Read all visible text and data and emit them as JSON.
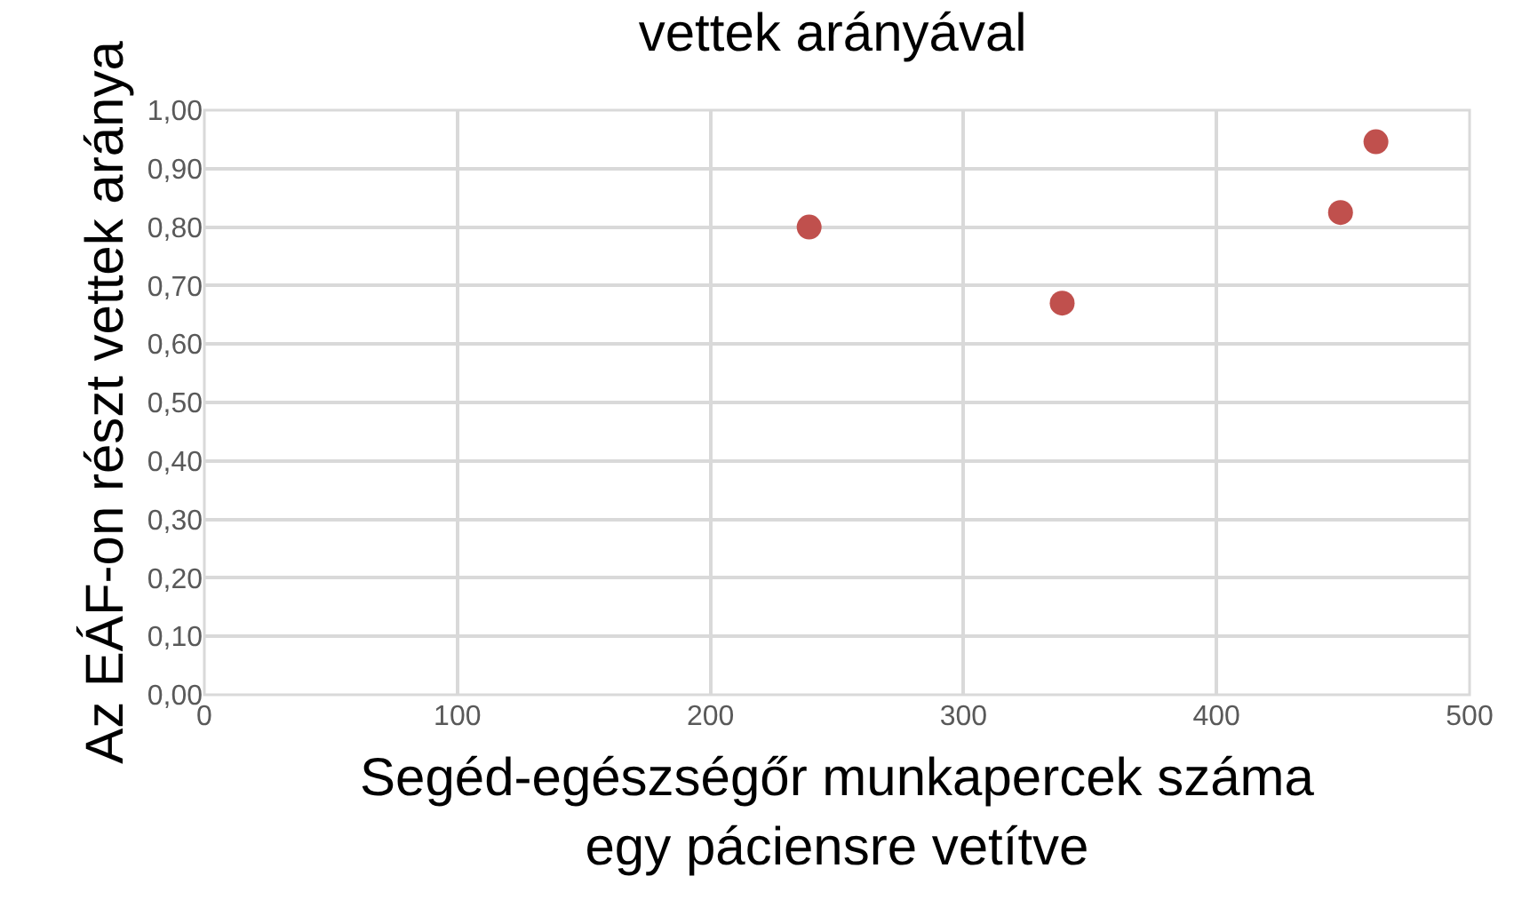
{
  "chart_data": {
    "type": "scatter",
    "title": "vettek arányával",
    "xlabel": "Segéd-egészségőr munkapercek száma\negy páciensre vetítve",
    "ylabel": "Az EÁF-on részt vettek aránya",
    "x": [
      239,
      339,
      449,
      463
    ],
    "series": [
      {
        "color": "#c0504d",
        "values": [
          0.8,
          0.67,
          0.825,
          0.946
        ]
      }
    ],
    "xlim": [
      0,
      500
    ],
    "xticks": [
      0,
      100,
      200,
      300,
      400,
      500
    ],
    "ylim": [
      0,
      1
    ],
    "yticks": [
      {
        "value": 0,
        "label": "0,00"
      },
      {
        "value": 0.1,
        "label": "0,10"
      },
      {
        "value": 0.2,
        "label": "0,20"
      },
      {
        "value": 0.3,
        "label": "0,30"
      },
      {
        "value": 0.4,
        "label": "0,40"
      },
      {
        "value": 0.5,
        "label": "0,50"
      },
      {
        "value": 0.6,
        "label": "0,60"
      },
      {
        "value": 0.7,
        "label": "0,70"
      },
      {
        "value": 0.8,
        "label": "0,80"
      },
      {
        "value": 0.9,
        "label": "0,90"
      },
      {
        "value": 1,
        "label": "1,00"
      }
    ],
    "grid": true,
    "marker": "circle"
  }
}
